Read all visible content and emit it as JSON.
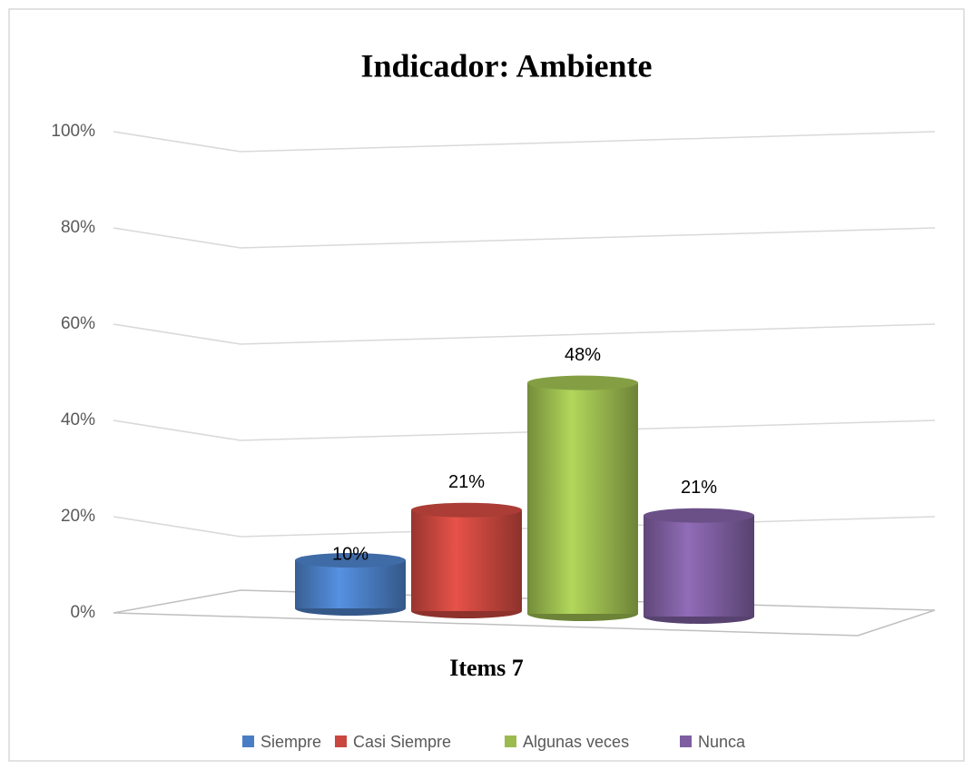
{
  "chart_data": {
    "type": "bar3d",
    "title": "Indicador: Ambiente",
    "x_label": "Items 7",
    "categories": [
      "Items 7"
    ],
    "series": [
      {
        "name": "Siempre",
        "color": "#4a7ec4",
        "values": [
          10
        ],
        "value_labels": [
          "10%"
        ]
      },
      {
        "name": "Casi Siempre",
        "color": "#c9473f",
        "values": [
          21
        ],
        "value_labels": [
          "21%"
        ]
      },
      {
        "name": "Algunas veces",
        "color": "#9bbb4f",
        "values": [
          48
        ],
        "value_labels": [
          "48%"
        ]
      },
      {
        "name": "Nunca",
        "color": "#7e5ea0",
        "values": [
          21
        ],
        "value_labels": [
          "21%"
        ]
      }
    ],
    "ylim": [
      0,
      100
    ],
    "yticks": [
      {
        "value": 0,
        "label": "0%"
      },
      {
        "value": 20,
        "label": "20%"
      },
      {
        "value": 40,
        "label": "40%"
      },
      {
        "value": 60,
        "label": "60%"
      },
      {
        "value": 80,
        "label": "80%"
      },
      {
        "value": 100,
        "label": "100%"
      }
    ],
    "grid": true,
    "legend": "bottom"
  }
}
